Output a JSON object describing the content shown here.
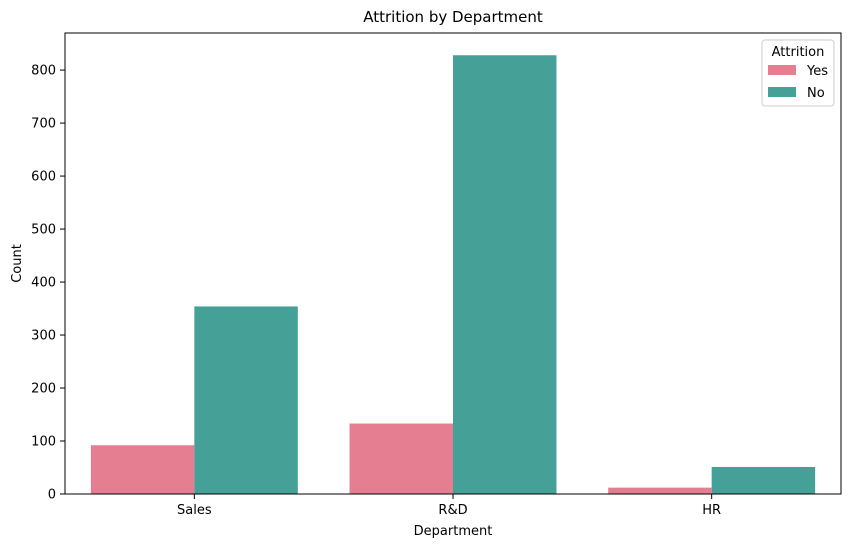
{
  "chart_data": {
    "type": "bar",
    "title": "Attrition by Department",
    "xlabel": "Department",
    "ylabel": "Count",
    "categories": [
      "Sales",
      "R&D",
      "HR"
    ],
    "series": [
      {
        "name": "Yes",
        "values": [
          92,
          133,
          12
        ],
        "color": "#e67e91"
      },
      {
        "name": "No",
        "values": [
          354,
          828,
          51
        ],
        "color": "#45a098"
      }
    ],
    "ylim": [
      0,
      870
    ],
    "yticks": [
      0,
      100,
      200,
      300,
      400,
      500,
      600,
      700,
      800
    ],
    "grid": false,
    "legend": {
      "title": "Attrition",
      "placement": "top-right"
    }
  }
}
